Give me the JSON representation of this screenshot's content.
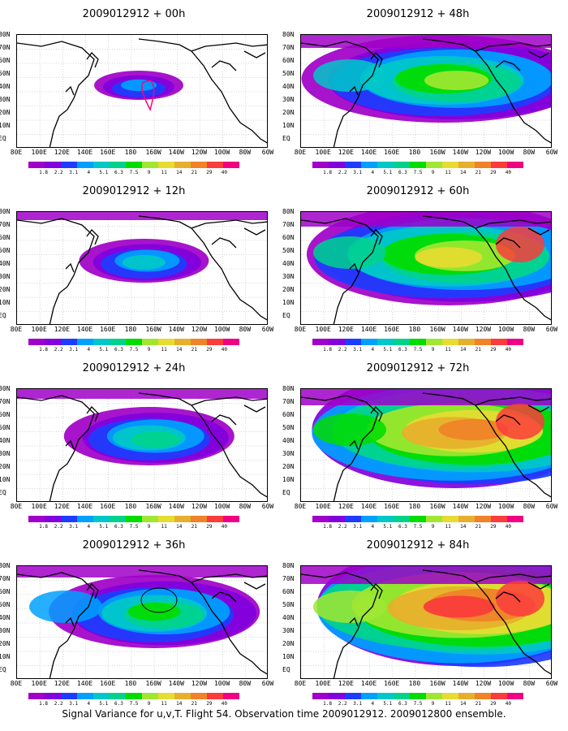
{
  "caption": "Signal Variance for u,v,T. Flight 54. Observation time 2009012912. 2009012800 ensemble.",
  "panels": [
    {
      "title": "2009012912 + 00h",
      "level": 0
    },
    {
      "title": "2009012912 + 12h",
      "level": 1
    },
    {
      "title": "2009012912 + 24h",
      "level": 2
    },
    {
      "title": "2009012912 + 36h",
      "level": 3
    },
    {
      "title": "2009012912 + 48h",
      "level": 4
    },
    {
      "title": "2009012912 + 60h",
      "level": 5
    },
    {
      "title": "2009012912 + 72h",
      "level": 6
    },
    {
      "title": "2009012912 + 84h",
      "level": 7
    }
  ],
  "lat_labels": [
    "80N",
    "70N",
    "60N",
    "50N",
    "40N",
    "30N",
    "20N",
    "10N",
    "EQ"
  ],
  "lon_labels": [
    "80E",
    "100E",
    "120E",
    "140E",
    "160E",
    "180",
    "160W",
    "140W",
    "120W",
    "100W",
    "80W",
    "60W"
  ],
  "colorbar": {
    "labels": [
      "1.8",
      "2.2",
      "3.1",
      "4",
      "5.1",
      "6.3",
      "7.5",
      "9",
      "11",
      "14",
      "21",
      "29",
      "40"
    ],
    "colors": [
      "#a000c8",
      "#8200dc",
      "#1e3cff",
      "#00a0ff",
      "#00c8c8",
      "#00d28c",
      "#00dc00",
      "#a0e632",
      "#e6dc32",
      "#e6af2d",
      "#f08228",
      "#fa3c3c",
      "#f00082"
    ]
  },
  "colors": {
    "land_outline": "#000000",
    "grid": "#999999",
    "background": "#ffffff",
    "track": "#ff0080"
  }
}
